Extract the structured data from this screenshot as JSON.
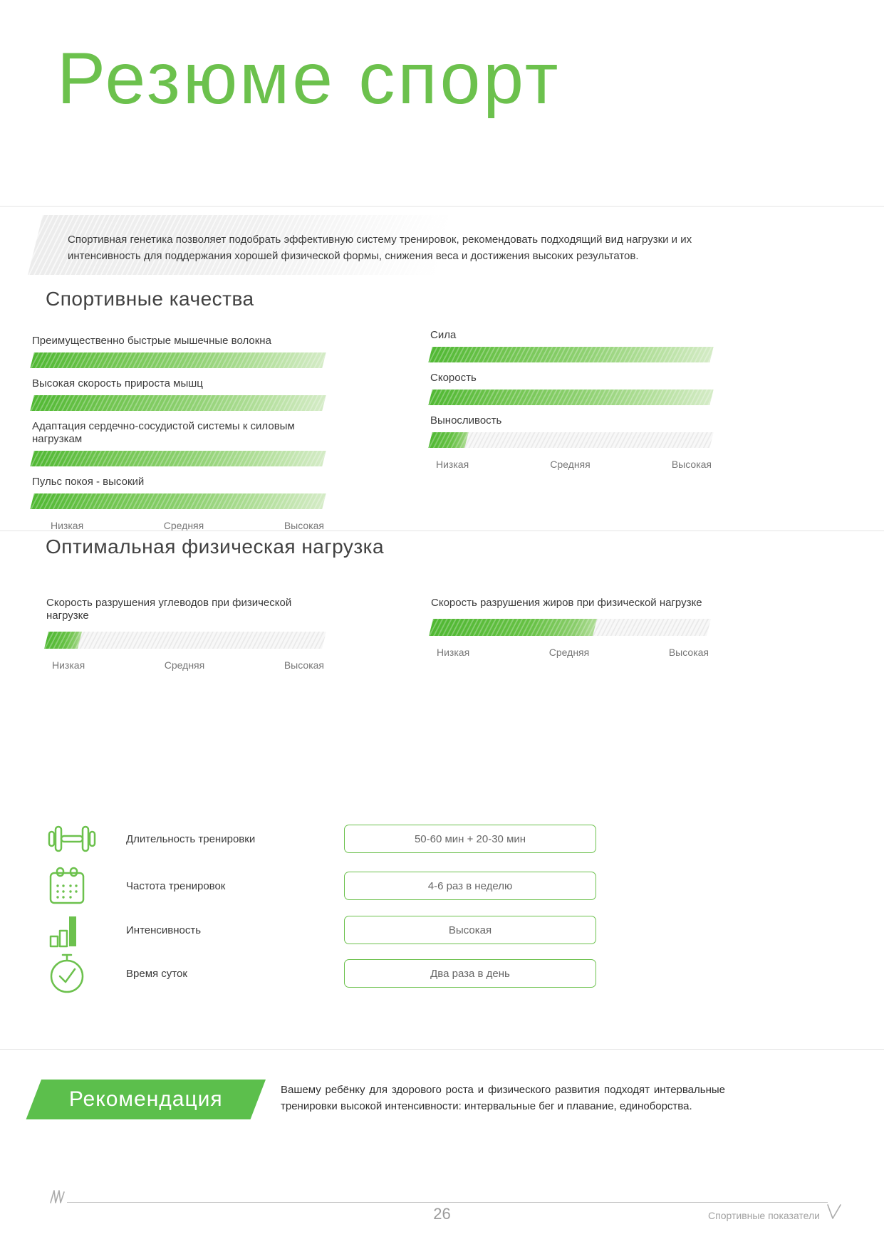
{
  "page": {
    "title": "Резюме спорт",
    "footer": {
      "page_number": "26",
      "label": "Спортивные показатели"
    }
  },
  "intro": {
    "text": "Спортивная генетика позволяет подобрать эффективную систему тренировок, рекомендовать подходящий вид нагрузки и их интенсивность для поддержания хорошей физической формы, снижения веса и достижения высоких результатов."
  },
  "qualities": {
    "heading": "Спортивные качества",
    "left": [
      {
        "label": "Преимущественно быстрые мышечные волокна",
        "level": "Высокая",
        "value": 100
      },
      {
        "label": "Высокая скорость прироста мышц",
        "level": "Высокая",
        "value": 100
      },
      {
        "label": "Адаптация сердечно-сосудистой системы к силовым нагрузкам",
        "level": "Высокая",
        "value": 100
      },
      {
        "label": "Пульс покоя - высокий",
        "level": "Высокая",
        "value": 100
      }
    ],
    "right": [
      {
        "label": "Сила",
        "level": "Высокая",
        "value": 100
      },
      {
        "label": "Скорость",
        "level": "Высокая",
        "value": 100
      },
      {
        "label": "Выносливость",
        "level": "Низкая",
        "value": 13
      }
    ],
    "scale": [
      "Низкая",
      "Средняя",
      "Высокая"
    ]
  },
  "load": {
    "heading": "Оптимальная физическая нагрузка",
    "items": [
      {
        "label": "Скорость разрушения углеводов при физической нагрузке",
        "level": "Низкая",
        "value": 12
      },
      {
        "label": "Скорость разрушения жиров при физической нагрузке",
        "level": "Средняя",
        "value": 59
      }
    ],
    "scale": [
      "Низкая",
      "Средняя",
      "Высокая"
    ]
  },
  "training": {
    "rows": [
      {
        "icon": "dumbbell-icon",
        "label": "Длительность тренировки",
        "value": "50-60 мин + 20-30 мин"
      },
      {
        "icon": "calendar-icon",
        "label": "Частота тренировок",
        "value": "4-6 раз в неделю"
      },
      {
        "icon": "bar-chart-icon",
        "label": "Интенсивность",
        "value": "Высокая"
      },
      {
        "icon": "stopwatch-icon",
        "label": "Время суток",
        "value": "Два раза в день"
      }
    ]
  },
  "recommendation": {
    "banner": "Рекомендация",
    "text": "Вашему ребёнку для здорового роста и физического развития подходят интервальные тренировки высокой интенсивности: интервальные бег и плавание, единоборства."
  },
  "colors": {
    "primary_green": "#6CC14D",
    "banner_green": "#5CBF4C",
    "bar_fill_start": "#50B833",
    "bar_fill_fade_end": "#D4EBC6",
    "track_gray": "#EFEFEF",
    "text_dark": "#3B3B3B",
    "text_muted": "#777777",
    "footer_gray": "#9B9B9B"
  }
}
